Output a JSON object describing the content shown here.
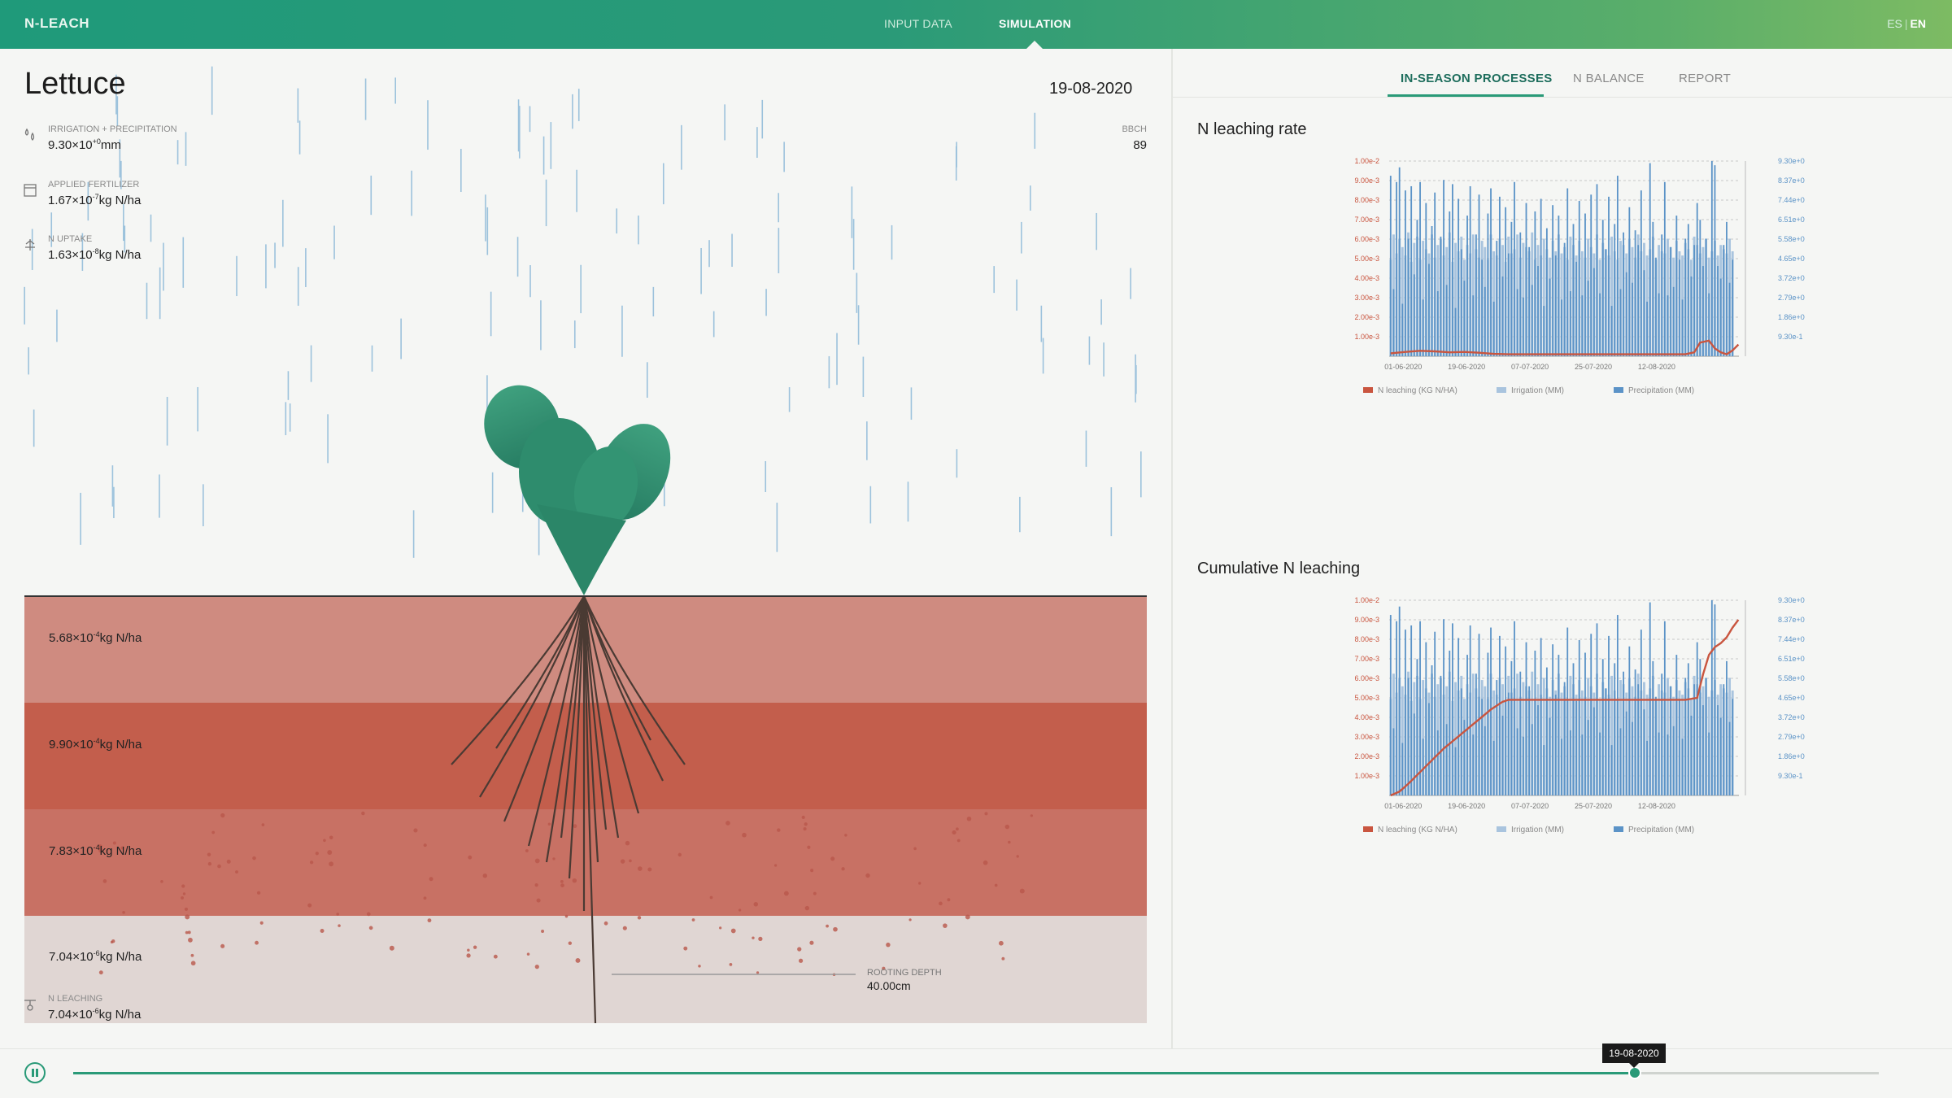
{
  "header": {
    "brand": "N-LEACH",
    "nav": [
      {
        "label": "INPUT DATA"
      },
      {
        "label": "SIMULATION"
      }
    ],
    "lang": {
      "es": "ES",
      "en": "EN"
    }
  },
  "crop": {
    "name": "Lettuce",
    "date": "19-08-2020"
  },
  "stats": {
    "irrigation": {
      "label": "IRRIGATION + PRECIPITATION",
      "mant": "9.30×10",
      "exp": "+0",
      "unit": "mm"
    },
    "fertilizer": {
      "label": "APPLIED FERTILIZER",
      "mant": "1.67×10",
      "exp": "-7",
      "unit": "kg N/ha"
    },
    "uptake": {
      "label": "N UPTAKE",
      "mant": "1.63×10",
      "exp": "-8",
      "unit": "kg N/ha"
    },
    "leaching": {
      "label": "N LEACHING",
      "mant": "7.04×10",
      "exp": "-6",
      "unit": "kg N/ha"
    },
    "bbch": {
      "label": "BBCH",
      "value": "89"
    }
  },
  "layers": [
    {
      "mant": "5.68×10",
      "exp": "-4",
      "unit": "kg N/ha",
      "color": "#cf8b80"
    },
    {
      "mant": "9.90×10",
      "exp": "-4",
      "unit": "kg N/ha",
      "color": "#c35e4c"
    },
    {
      "mant": "7.83×10",
      "exp": "-4",
      "unit": "kg N/ha",
      "color": "#c87164"
    },
    {
      "mant": "7.04×10",
      "exp": "-6",
      "unit": "kg N/ha",
      "color": "#e0d6d3"
    }
  ],
  "rooting": {
    "label": "ROOTING DEPTH",
    "value": "40.00cm"
  },
  "tabs": [
    {
      "label": "IN-SEASON PROCESSES"
    },
    {
      "label": "N BALANCE"
    },
    {
      "label": "REPORT"
    }
  ],
  "timeline": {
    "current_date": "19-08-2020",
    "progress": 0.865
  },
  "colors": {
    "accent": "#2a9a78",
    "leaching": "#c9553f",
    "irrigation": "#a9c4de",
    "precipitation": "#5b93c7"
  },
  "chart_data": [
    {
      "type": "bar",
      "title": "N leaching rate",
      "x_ticks": [
        "01-06-2020",
        "19-06-2020",
        "07-07-2020",
        "25-07-2020",
        "12-08-2020"
      ],
      "y_left_ticks": [
        "1.00e-3",
        "2.00e-3",
        "3.00e-3",
        "4.00e-3",
        "5.00e-3",
        "6.00e-3",
        "7.00e-3",
        "8.00e-3",
        "9.00e-3",
        "1.00e-2"
      ],
      "y_right_ticks": [
        "9.30e-1",
        "1.86e+0",
        "2.79e+0",
        "3.72e+0",
        "4.65e+0",
        "5.58e+0",
        "6.51e+0",
        "7.44e+0",
        "8.37e+0",
        "9.30e+0"
      ],
      "y_left_lim": [
        0,
        0.01
      ],
      "y_right_lim": [
        0,
        9.3
      ],
      "legend": [
        "N leaching (KG N/HA)",
        "Irrigation (MM)",
        "Precipitation (MM)"
      ],
      "series": [
        {
          "name": "Precipitation (MM)",
          "axis": "right",
          "values": [
            8.6,
            3.2,
            8.3,
            9.0,
            2.5,
            7.9,
            5.6,
            8.1,
            3.9,
            6.5,
            8.3,
            2.7,
            7.3,
            4.4,
            6.2,
            7.8,
            3.1,
            5.7,
            8.4,
            3.4,
            6.9,
            8.2,
            2.3,
            7.5,
            5.1,
            3.6,
            6.7,
            8.1,
            2.9,
            5.8,
            7.7,
            4.6,
            3.3,
            6.8,
            8.0,
            2.6,
            5.5,
            7.6,
            3.8,
            7.1,
            4.9,
            6.4,
            8.3,
            3.2,
            5.9,
            2.8,
            7.3,
            5.2,
            3.4,
            6.9,
            4.3,
            7.5,
            2.4,
            6.1,
            3.7,
            7.2,
            4.8,
            6.7,
            2.7,
            5.4,
            8.0,
            3.1,
            6.3,
            4.5,
            7.4,
            2.9,
            6.8,
            3.6,
            7.7,
            4.2,
            8.2,
            3.0,
            6.5,
            5.1,
            7.6,
            2.4,
            6.3,
            8.6,
            3.2,
            5.9,
            4.0,
            7.1,
            3.5,
            6.0,
            5.3,
            7.9,
            4.1,
            2.6,
            9.2,
            6.4,
            4.7,
            3.0,
            5.8,
            8.3,
            2.9,
            5.2,
            3.3,
            6.7,
            4.6,
            2.7,
            5.6,
            6.3,
            3.8,
            5.3,
            7.3,
            6.5,
            4.3,
            5.6,
            3.0,
            9.3,
            9.1,
            4.3,
            3.7,
            5.3,
            6.4,
            3.5,
            4.6
          ]
        },
        {
          "name": "Irrigation (MM)",
          "axis": "right",
          "values": [
            4.6,
            5.8,
            4.9,
            5.6,
            5.2,
            4.8,
            5.9,
            4.5,
            5.4,
            5.7,
            4.6,
            5.5,
            5.1,
            4.9,
            5.8,
            4.7,
            5.3,
            5.6,
            4.8,
            5.2,
            5.9,
            4.5,
            5.4,
            5.0,
            5.7,
            4.6,
            5.3,
            4.9,
            5.8,
            5.1,
            4.7,
            5.5,
            5.2,
            4.6,
            5.8,
            5.0,
            4.8,
            5.6,
            5.3,
            4.5,
            5.7,
            4.9,
            5.1,
            5.8,
            4.7,
            5.4,
            5.2,
            5.0,
            5.9,
            4.6,
            5.3,
            4.8,
            5.6,
            5.1,
            4.7,
            5.5,
            5.0,
            5.8,
            4.9,
            5.2,
            4.6,
            5.7,
            5.3,
            4.8,
            5.5,
            5.0,
            4.7,
            5.6,
            5.2,
            4.9,
            5.8,
            4.6,
            5.4,
            5.1,
            4.8,
            5.7,
            5.0,
            4.6,
            5.5,
            5.3,
            4.9,
            5.6,
            5.2,
            4.7,
            5.8,
            5.0,
            5.4,
            4.8,
            5.1,
            5.7,
            4.6,
            5.3,
            5.0,
            4.9,
            5.6,
            5.2,
            4.7,
            5.5,
            5.0,
            4.8,
            5.4,
            5.1,
            4.6,
            5.7,
            5.3,
            4.9,
            5.2,
            5.6,
            4.7,
            5.0,
            5.5,
            4.8,
            5.3,
            5.1,
            4.9,
            5.6,
            5.0
          ]
        },
        {
          "name": "N leaching (KG N/HA)",
          "axis": "left",
          "kind": "line",
          "x": [
            0,
            5,
            10,
            15,
            20,
            25,
            30,
            35,
            40,
            45,
            50,
            55,
            60,
            65,
            70,
            75,
            80,
            85,
            90,
            95,
            100,
            103,
            105,
            108,
            110,
            112,
            114,
            116,
            118
          ],
          "values": [
            0.00015,
            0.00022,
            0.00028,
            0.00025,
            0.0002,
            0.00022,
            0.00018,
            0.00012,
            0.0001,
            0.0001,
            0.0001,
            0.0001,
            0.0001,
            0.0001,
            0.0001,
            0.0001,
            0.0001,
            0.0001,
            0.0001,
            0.0001,
            0.0001,
            0.0002,
            0.0007,
            0.0008,
            0.0004,
            0.0002,
            0.0001,
            0.0003,
            0.0006
          ]
        }
      ]
    },
    {
      "type": "bar",
      "title": "Cumulative N leaching",
      "x_ticks": [
        "01-06-2020",
        "19-06-2020",
        "07-07-2020",
        "25-07-2020",
        "12-08-2020"
      ],
      "y_left_ticks": [
        "1.00e-3",
        "2.00e-3",
        "3.00e-3",
        "4.00e-3",
        "5.00e-3",
        "6.00e-3",
        "7.00e-3",
        "8.00e-3",
        "9.00e-3",
        "1.00e-2"
      ],
      "y_right_ticks": [
        "9.30e-1",
        "1.86e+0",
        "2.79e+0",
        "3.72e+0",
        "4.65e+0",
        "5.58e+0",
        "6.51e+0",
        "7.44e+0",
        "8.37e+0",
        "9.30e+0"
      ],
      "y_left_lim": [
        0,
        0.01
      ],
      "y_right_lim": [
        0,
        9.3
      ],
      "legend": [
        "N leaching (KG N/HA)",
        "Irrigation (MM)",
        "Precipitation (MM)"
      ],
      "series": [
        {
          "name": "Precipitation (MM)",
          "axis": "right",
          "same_as_chart_1": true
        },
        {
          "name": "Irrigation (MM)",
          "axis": "right",
          "same_as_chart_1": true
        },
        {
          "name": "N leaching (KG N/HA)",
          "axis": "left",
          "kind": "line",
          "x": [
            0,
            3,
            6,
            10,
            14,
            18,
            22,
            26,
            30,
            34,
            38,
            40,
            44,
            50,
            60,
            70,
            80,
            90,
            100,
            104,
            106,
            108,
            110,
            112,
            114,
            116,
            118
          ],
          "values": [
            0.0,
            0.0002,
            0.0006,
            0.0012,
            0.0018,
            0.0024,
            0.0029,
            0.0034,
            0.0039,
            0.0044,
            0.0048,
            0.0049,
            0.0049,
            0.0049,
            0.0049,
            0.0049,
            0.0049,
            0.0049,
            0.0049,
            0.005,
            0.0062,
            0.0072,
            0.0076,
            0.0078,
            0.0081,
            0.0086,
            0.009
          ]
        }
      ]
    }
  ]
}
